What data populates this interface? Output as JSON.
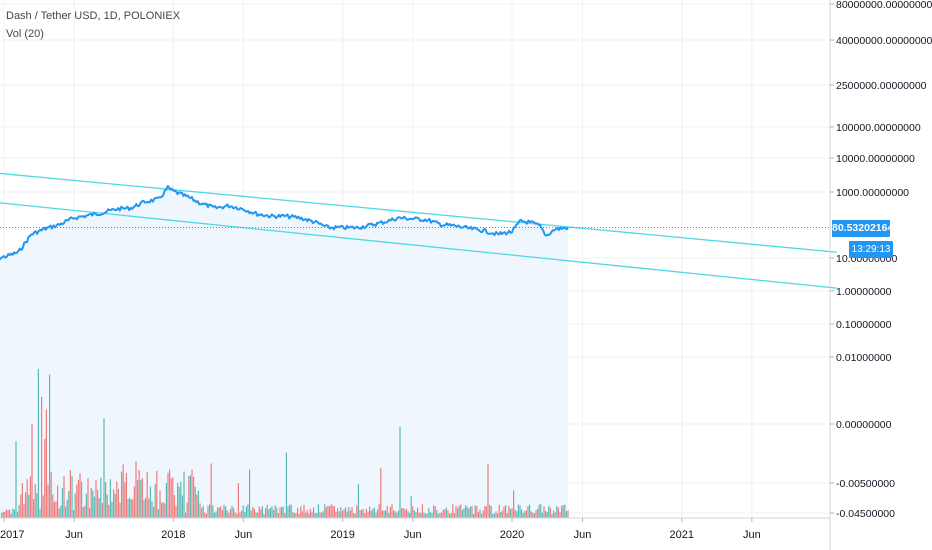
{
  "header": {
    "title": "Dash / Tether USD, 1D, POLONIEX",
    "indicator": "Vol (20)"
  },
  "badges": {
    "last_price": "80.53202164",
    "countdown": "13:29:13"
  },
  "colors": {
    "price_line": "#2196f3",
    "channel_lines": "#4dd8e6",
    "volume_up": "#26a69a",
    "volume_down": "#ef5350",
    "badge": "#2196f3",
    "area_fill": "#f0f6fd"
  },
  "chart_data": {
    "type": "line",
    "scale": "log",
    "grid": true,
    "x_ticks": [
      "2017",
      "Jun",
      "2018",
      "Jun",
      "2019",
      "Jun",
      "2020",
      "Jun",
      "2021",
      "Jun"
    ],
    "y_ticks": [
      "80000000.00000000",
      "40000000.00000000",
      "2500000.00000000",
      "100000.00000000",
      "10000.00000000",
      "1000.00000000",
      "10.00000000",
      "1.00000000",
      "0.10000000",
      "0.01000000",
      "0.00000000",
      "-0.00500000",
      "-0.04500000"
    ],
    "series": [
      {
        "type": "line",
        "points": [
          [
            "2016-12-01",
            8
          ],
          [
            "2017-01-01",
            10
          ],
          [
            "2017-02-01",
            14
          ],
          [
            "2017-03-01",
            50
          ],
          [
            "2017-04-01",
            75
          ],
          [
            "2017-05-01",
            100
          ],
          [
            "2017-06-01",
            160
          ],
          [
            "2017-07-01",
            190
          ],
          [
            "2017-08-01",
            230
          ],
          [
            "2017-09-01",
            300
          ],
          [
            "2017-10-01",
            320
          ],
          [
            "2017-11-01",
            500
          ],
          [
            "2017-12-01",
            600
          ],
          [
            "2017-12-20",
            1350
          ],
          [
            "2018-01-01",
            1050
          ],
          [
            "2018-02-01",
            700
          ],
          [
            "2018-03-01",
            450
          ],
          [
            "2018-04-01",
            320
          ],
          [
            "2018-05-01",
            380
          ],
          [
            "2018-06-01",
            300
          ],
          [
            "2018-07-01",
            210
          ],
          [
            "2018-08-01",
            180
          ],
          [
            "2018-09-01",
            180
          ],
          [
            "2018-10-01",
            160
          ],
          [
            "2018-11-01",
            120
          ],
          [
            "2018-12-01",
            80
          ],
          [
            "2019-01-01",
            80
          ],
          [
            "2019-02-01",
            80
          ],
          [
            "2019-03-01",
            95
          ],
          [
            "2019-04-01",
            120
          ],
          [
            "2019-05-01",
            160
          ],
          [
            "2019-06-01",
            150
          ],
          [
            "2019-07-01",
            140
          ],
          [
            "2019-08-01",
            100
          ],
          [
            "2019-09-01",
            90
          ],
          [
            "2019-10-01",
            75
          ],
          [
            "2019-11-01",
            65
          ],
          [
            "2019-12-01",
            50
          ],
          [
            "2020-01-01",
            60
          ],
          [
            "2020-01-20",
            130
          ],
          [
            "2020-02-15",
            110
          ],
          [
            "2020-03-01",
            90
          ],
          [
            "2020-03-15",
            45
          ],
          [
            "2020-04-01",
            70
          ],
          [
            "2020-05-01",
            80
          ]
        ]
      },
      {
        "type": "line",
        "name": "",
        "points": [
          [
            "2016-12-01",
            4000
          ],
          [
            "2021-12-01",
            14
          ]
        ]
      },
      {
        "type": "line",
        "name": "",
        "points": [
          [
            "2016-12-01",
            500
          ],
          [
            "2021-12-01",
            1.1
          ]
        ]
      }
    ],
    "last_value": 80.53202164
  }
}
